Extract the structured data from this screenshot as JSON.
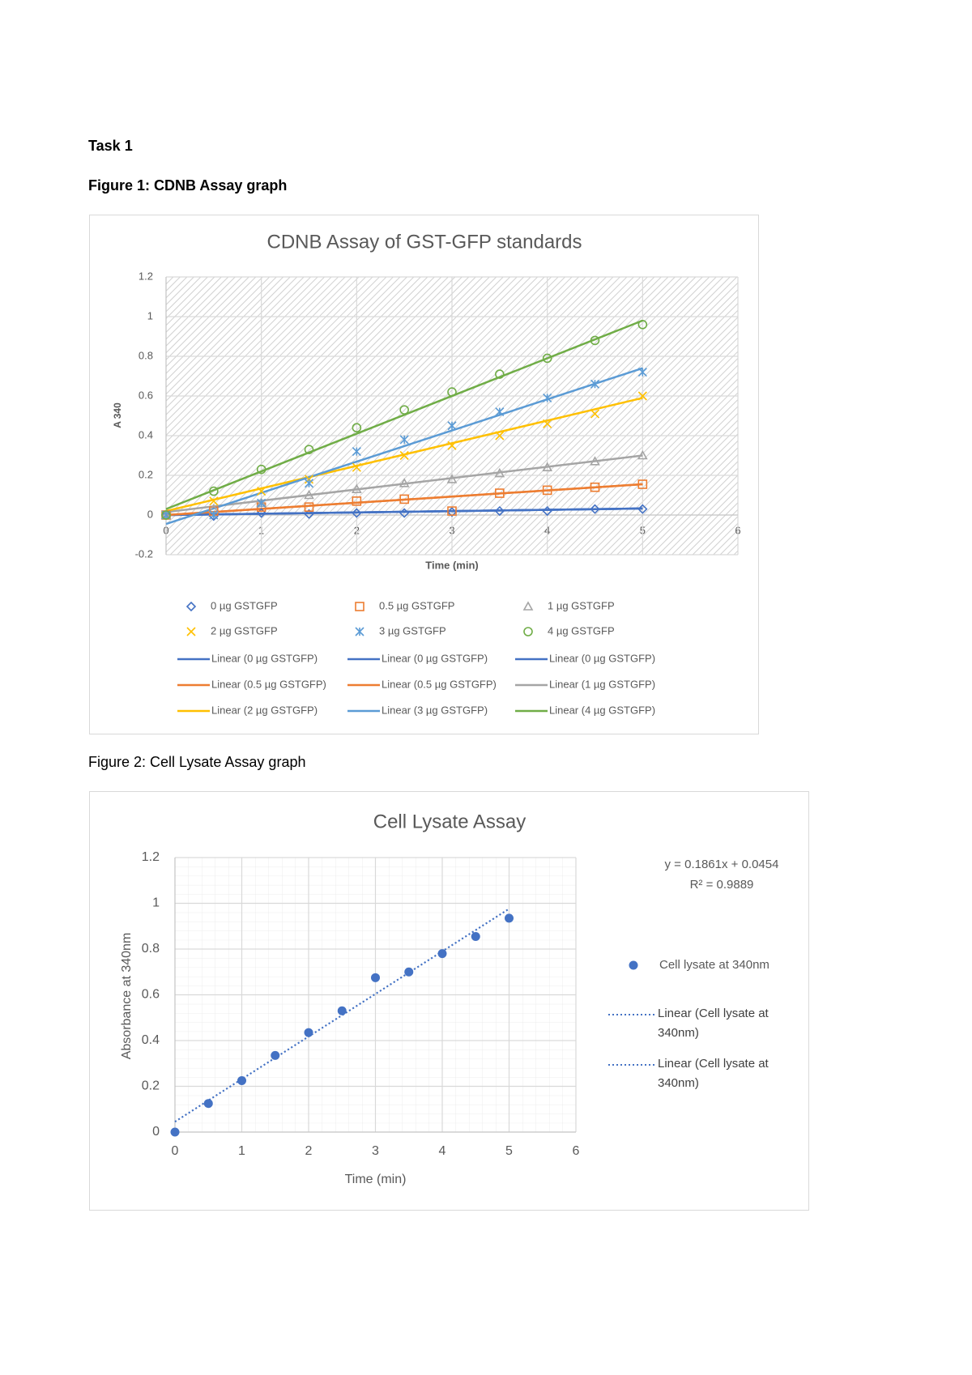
{
  "document": {
    "task": "Task 1",
    "figure1_caption": "Figure 1: CDNB Assay graph",
    "figure2_caption": "Figure 2: Cell Lysate Assay graph"
  },
  "chart_data": [
    {
      "type": "scatter",
      "title": "CDNB Assay of GST-GFP standards",
      "x_label": "Time (min)",
      "y_label": "A 340",
      "xlim": [
        0,
        6
      ],
      "xticks": [
        0,
        1,
        2,
        3,
        4,
        5,
        6
      ],
      "ylim": [
        -0.2,
        1.2
      ],
      "yticks": [
        -0.2,
        0,
        0.2,
        0.4,
        0.6,
        0.8,
        1,
        1.2
      ],
      "grid": true,
      "plot_background": "hatched",
      "legend": "bottom",
      "x": [
        0,
        0.5,
        1,
        1.5,
        2,
        2.5,
        3,
        3.5,
        4,
        4.5,
        5
      ],
      "series": [
        {
          "name": "0 µg GSTGFP",
          "color": "#4472c4",
          "marker": "diamond",
          "values": [
            0,
            -0.005,
            0.01,
            0.005,
            0.01,
            0.01,
            0.015,
            0.02,
            0.02,
            0.03,
            0.03
          ]
        },
        {
          "name": "0.5 µg GSTGFP",
          "color": "#ed7d31",
          "marker": "square",
          "values": [
            0,
            0.02,
            0.04,
            0.04,
            0.07,
            0.08,
            0.02,
            0.11,
            0.125,
            0.14,
            0.155
          ]
        },
        {
          "name": "1 µg GSTGFP",
          "color": "#a5a5a5",
          "marker": "triangle",
          "values": [
            0,
            0.03,
            0.06,
            0.1,
            0.13,
            0.16,
            0.18,
            0.21,
            0.24,
            0.27,
            0.3
          ]
        },
        {
          "name": "2 µg GSTGFP",
          "color": "#ffc000",
          "marker": "x",
          "values": [
            0,
            0.07,
            0.12,
            0.18,
            0.24,
            0.3,
            0.35,
            0.4,
            0.46,
            0.51,
            0.6
          ]
        },
        {
          "name": "3 µg GSTGFP",
          "color": "#5b9bd5",
          "marker": "asterisk",
          "values": [
            0,
            0,
            0.06,
            0.16,
            0.32,
            0.38,
            0.45,
            0.52,
            0.59,
            0.66,
            0.72
          ]
        },
        {
          "name": "4 µg GSTGFP",
          "color": "#70ad47",
          "marker": "circle",
          "values": [
            0,
            0.12,
            0.23,
            0.33,
            0.44,
            0.53,
            0.62,
            0.71,
            0.79,
            0.88,
            0.96
          ]
        }
      ],
      "trendlines": [
        {
          "name": "Linear (0 µg GSTGFP)",
          "color": "#4472c4",
          "x": [
            0,
            5
          ],
          "values": [
            0,
            0.033
          ]
        },
        {
          "name": "Linear (0 µg GSTGFP)",
          "color": "#4472c4",
          "x": [
            0,
            5
          ],
          "values": [
            0,
            0.033
          ]
        },
        {
          "name": "Linear (0 µg GSTGFP)",
          "color": "#4472c4",
          "x": [
            0,
            5
          ],
          "values": [
            0,
            0.033
          ]
        },
        {
          "name": "Linear (0.5 µg GSTGFP)",
          "color": "#ed7d31",
          "x": [
            0,
            5
          ],
          "values": [
            0,
            0.155
          ]
        },
        {
          "name": "Linear (0.5 µg GSTGFP)",
          "color": "#ed7d31",
          "x": [
            0,
            5
          ],
          "values": [
            0,
            0.155
          ]
        },
        {
          "name": "Linear (1 µg GSTGFP)",
          "color": "#a5a5a5",
          "x": [
            0,
            5
          ],
          "values": [
            0.015,
            0.3
          ]
        },
        {
          "name": "Linear (2 µg GSTGFP)",
          "color": "#ffc000",
          "x": [
            0,
            5
          ],
          "values": [
            0.02,
            0.59
          ]
        },
        {
          "name": "Linear (3 µg GSTGFP)",
          "color": "#5b9bd5",
          "x": [
            0,
            5
          ],
          "values": [
            -0.045,
            0.74
          ]
        },
        {
          "name": "Linear (4 µg GSTGFP)",
          "color": "#70ad47",
          "x": [
            0,
            5
          ],
          "values": [
            0.03,
            0.98
          ]
        }
      ]
    },
    {
      "type": "scatter",
      "title": "Cell Lysate Assay",
      "x_label": "Time (min)",
      "y_label": "Absorbance at 340nm",
      "xlim": [
        0,
        6
      ],
      "xticks": [
        0,
        1,
        2,
        3,
        4,
        5,
        6
      ],
      "ylim": [
        0,
        1.2
      ],
      "yticks": [
        0,
        0.2,
        0.4,
        0.6,
        0.8,
        1,
        1.2
      ],
      "grid": true,
      "minor_grid": true,
      "legend": "right",
      "annotations": [
        "y = 0.1861x + 0.0454",
        "R² = 0.9889"
      ],
      "x": [
        0,
        0.5,
        1,
        1.5,
        2,
        2.5,
        3,
        3.5,
        4,
        4.5,
        5
      ],
      "series": [
        {
          "name": "Cell lysate at 340nm",
          "color": "#4472c4",
          "marker": "dot",
          "values": [
            0,
            0.125,
            0.225,
            0.335,
            0.435,
            0.53,
            0.675,
            0.7,
            0.78,
            0.855,
            0.935
          ]
        }
      ],
      "trendlines": [
        {
          "name": "Linear (Cell lysate at 340nm)",
          "color": "#4472c4",
          "dash": "dotted",
          "x": [
            0,
            5
          ],
          "values": [
            0.0454,
            0.976
          ]
        },
        {
          "name": "Linear (Cell lysate at 340nm)",
          "color": "#4472c4",
          "dash": "dotted",
          "x": [
            0,
            5
          ],
          "values": [
            0.0454,
            0.976
          ]
        }
      ]
    }
  ]
}
